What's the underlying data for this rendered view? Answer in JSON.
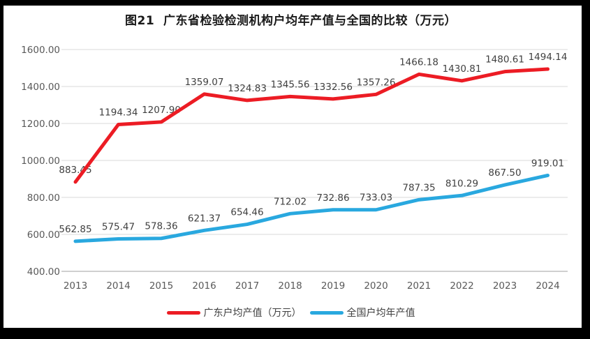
{
  "chart_data": {
    "type": "line",
    "title": "图21  广东省检验检测机构户均年产值与全国的比较（万元）",
    "categories": [
      "2013",
      "2014",
      "2015",
      "2016",
      "2017",
      "2018",
      "2019",
      "2020",
      "2021",
      "2022",
      "2023",
      "2024"
    ],
    "series": [
      {
        "name": "广东户均产值（万元）",
        "color": "#ec1c24",
        "values": [
          883.45,
          1194.34,
          1207.9,
          1359.07,
          1324.83,
          1345.56,
          1332.56,
          1357.26,
          1466.18,
          1430.81,
          1480.61,
          1494.14
        ]
      },
      {
        "name": "全国户均年产值",
        "color": "#29a8df",
        "values": [
          562.85,
          575.47,
          578.36,
          621.37,
          654.46,
          712.02,
          732.86,
          733.03,
          787.35,
          810.29,
          867.5,
          919.01
        ]
      }
    ],
    "ylim": [
      400,
      1600
    ],
    "y_tick_step": 200,
    "y_tick_labels": [
      "400.00",
      "600.00",
      "800.00",
      "1000.00",
      "1200.00",
      "1400.00",
      "1600.00"
    ],
    "grid": true,
    "value_labels": true,
    "legend_position": "bottom",
    "colors": {
      "gridline": "#d9d9d9",
      "baseline": "#bfbfbf",
      "axis_text": "#595959",
      "value_text": "#404040",
      "frame_border": "#000000",
      "background": "#ffffff"
    }
  }
}
